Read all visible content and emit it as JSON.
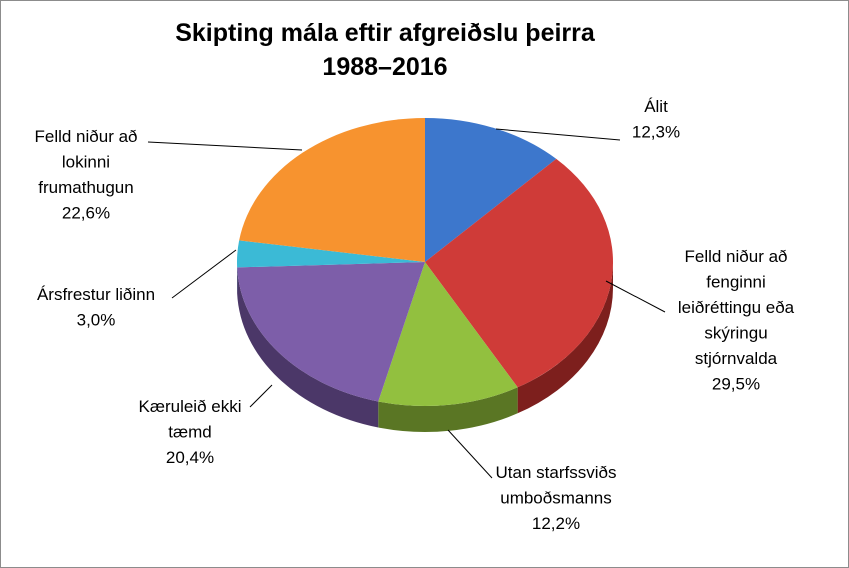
{
  "chart_data": {
    "type": "pie",
    "title_line1": "Skipting mála eftir afgreiðslu þeirra",
    "title_line2": "1988–2016",
    "slices": [
      {
        "lines": [
          "Álit",
          "12,3%"
        ],
        "value": 12.3,
        "color": "#3d77cc",
        "side": "#1f4a86"
      },
      {
        "lines": [
          "Felld niður að",
          "fenginni",
          "leiðréttingu eða",
          "skýringu",
          "stjórnvalda",
          "29,5%"
        ],
        "value": 29.5,
        "color": "#cf3b38",
        "side": "#7d1f1d"
      },
      {
        "lines": [
          "Utan starfssviðs",
          "umboðsmanns",
          "12,2%"
        ],
        "value": 12.2,
        "color": "#92c03f",
        "side": "#5a7624"
      },
      {
        "lines": [
          "Kæruleið ekki",
          "tæmd",
          "20,4%"
        ],
        "value": 20.4,
        "color": "#7d5ea9",
        "side": "#4b3768"
      },
      {
        "lines": [
          "Ársfrestur liðinn",
          "3,0%"
        ],
        "value": 3.0,
        "color": "#3bbad6",
        "side": "#217c90"
      },
      {
        "lines": [
          "Felld niður að",
          "lokinni",
          "frumathugun",
          "22,6%"
        ],
        "value": 22.6,
        "color": "#f7932f",
        "side": "#a85e18"
      }
    ]
  }
}
